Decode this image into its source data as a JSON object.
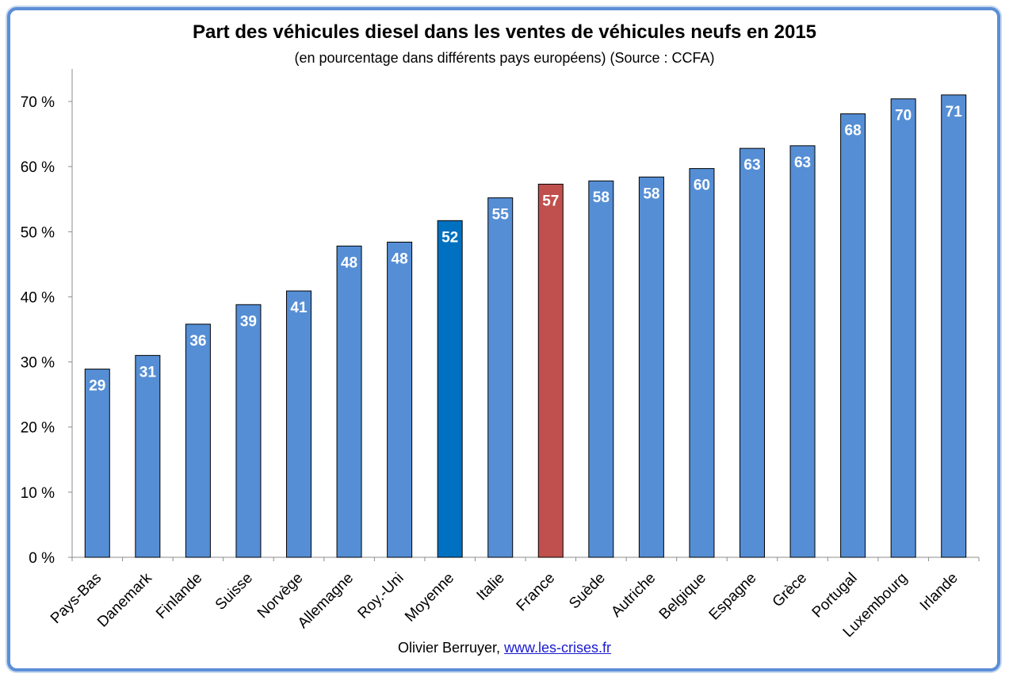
{
  "chart_data": {
    "type": "bar",
    "title": "Part  des véhicules diesel dans les ventes de véhicules neufs en 2015",
    "subtitle": "(en pourcentage dans différents pays européens) (Source : CCFA)",
    "categories": [
      "Pays-Bas",
      "Danemark",
      "Finlande",
      "Suisse",
      "Norvège",
      "Allemagne",
      "Roy.-Uni",
      "Moyenne",
      "Italie",
      "France",
      "Suède",
      "Autriche",
      "Belgique",
      "Espagne",
      "Grèce",
      "Portugal",
      "Luxembourg",
      "Irlande"
    ],
    "values": [
      28.9,
      31.0,
      35.8,
      38.8,
      40.9,
      47.8,
      48.4,
      51.7,
      55.2,
      57.3,
      57.8,
      58.4,
      59.7,
      62.8,
      63.2,
      68.1,
      70.4,
      71.0
    ],
    "data_labels": [
      "29",
      "31",
      "36",
      "39",
      "41",
      "48",
      "48",
      "52",
      "55",
      "57",
      "58",
      "58",
      "60",
      "63",
      "63",
      "68",
      "70",
      "71"
    ],
    "y_ticks": [
      "0 %",
      "10 %",
      "20 %",
      "30 %",
      "40 %",
      "50 %",
      "60 %",
      "70 %"
    ],
    "y_tick_values": [
      0,
      10,
      20,
      30,
      40,
      50,
      60,
      70
    ],
    "ylim": [
      0,
      75
    ],
    "xlabel": "",
    "ylabel": "",
    "grid": false,
    "legend": "none",
    "colors": {
      "default": "#558ed5",
      "Moyenne": "#0070c0",
      "France": "#c0504d",
      "bar_stroke": "#000000",
      "label": "#ffffff"
    }
  },
  "footer": {
    "author": "Olivier Berruyer,",
    "link": "www.les-crises.fr"
  }
}
